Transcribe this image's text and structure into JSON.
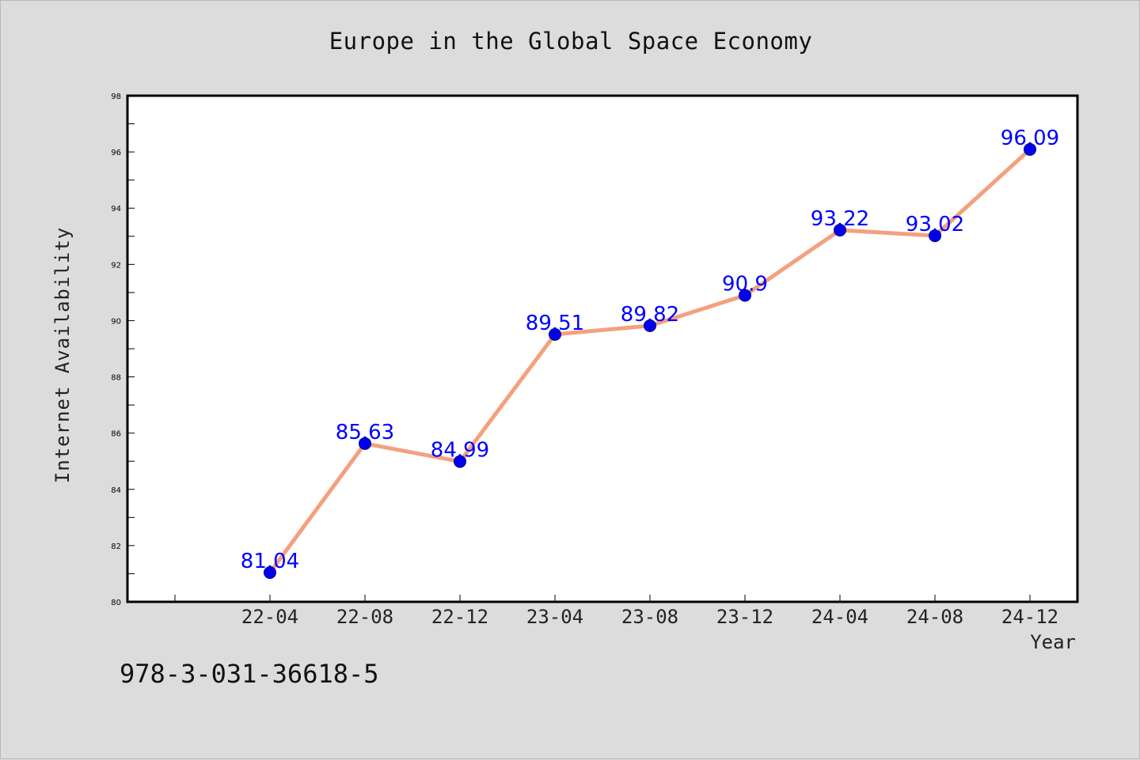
{
  "chart_data": {
    "type": "line",
    "title": "Europe in the Global Space Economy",
    "xlabel": "Year",
    "ylabel": "Internet Availability",
    "categories": [
      "22-04",
      "22-08",
      "22-12",
      "23-04",
      "23-08",
      "23-12",
      "24-04",
      "24-08",
      "24-12"
    ],
    "values": [
      81.04,
      85.63,
      84.99,
      89.51,
      89.82,
      90.9,
      93.22,
      93.02,
      96.09
    ],
    "data_labels": [
      "81.04",
      "85.63",
      "84.99",
      "89.51",
      "89.82",
      "90.9",
      "93.22",
      "93.02",
      "96.09"
    ],
    "ylim": [
      80,
      98
    ],
    "yticks": [
      80,
      82,
      84,
      86,
      88,
      90,
      92,
      94,
      96,
      98
    ],
    "grid": false,
    "legend": "none",
    "colors": {
      "line": "#f4a07e",
      "marker": "#0000ee",
      "label": "#0000ff",
      "plot_bg": "#ffffff",
      "figure_bg": "#dcdcdc"
    }
  },
  "footer": {
    "isbn": "978-3-031-36618-5"
  }
}
